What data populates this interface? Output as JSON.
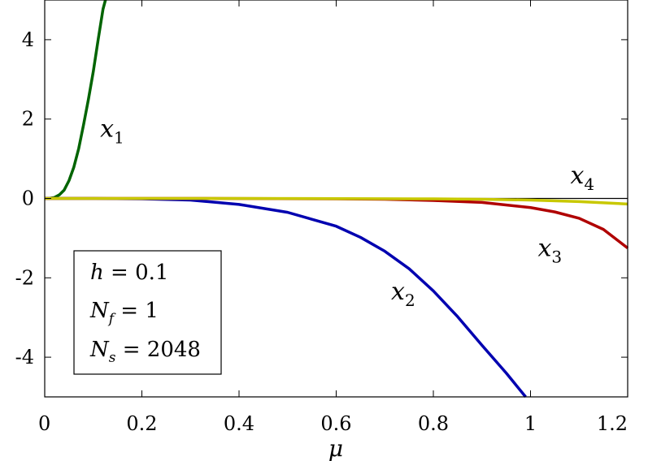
{
  "chart_data": {
    "type": "line",
    "xlabel": "μ",
    "xlim": [
      0,
      1.2
    ],
    "ylim": [
      -5,
      5
    ],
    "xticks": [
      "0",
      "0.2",
      "0.4",
      "0.6",
      "0.8",
      "1",
      "1.2"
    ],
    "xtick_values": [
      0,
      0.2,
      0.4,
      0.6,
      0.8,
      1.0,
      1.2
    ],
    "yticks": [
      "4",
      "2",
      "0",
      "-2",
      "-4"
    ],
    "ytick_values": [
      4,
      2,
      0,
      -2,
      -4
    ],
    "grid": false,
    "zero_line": true,
    "series": [
      {
        "name": "x",
        "sub": "1",
        "color": "#006400",
        "x": [
          0,
          0.01,
          0.02,
          0.03,
          0.04,
          0.05,
          0.06,
          0.07,
          0.08,
          0.09,
          0.1,
          0.11,
          0.12,
          0.125
        ],
        "y": [
          0,
          0.003,
          0.024,
          0.09,
          0.21,
          0.45,
          0.79,
          1.26,
          1.86,
          2.5,
          3.2,
          4.0,
          4.77,
          5.0
        ]
      },
      {
        "name": "x",
        "sub": "2",
        "color": "#0000b0",
        "x": [
          0,
          0.1,
          0.2,
          0.3,
          0.4,
          0.5,
          0.6,
          0.65,
          0.7,
          0.75,
          0.8,
          0.85,
          0.9,
          0.95,
          0.99
        ],
        "y": [
          0,
          0,
          -0.01,
          -0.04,
          -0.15,
          -0.35,
          -0.7,
          -0.98,
          -1.33,
          -1.77,
          -2.33,
          -2.98,
          -3.7,
          -4.4,
          -5.0
        ]
      },
      {
        "name": "x",
        "sub": "3",
        "color": "#b00000",
        "x": [
          0,
          0.3,
          0.6,
          0.7,
          0.8,
          0.9,
          1.0,
          1.05,
          1.1,
          1.15,
          1.2
        ],
        "y": [
          0,
          0,
          -0.01,
          -0.02,
          -0.05,
          -0.1,
          -0.23,
          -0.34,
          -0.5,
          -0.78,
          -1.25
        ]
      },
      {
        "name": "x",
        "sub": "4",
        "color": "#c8c800",
        "x": [
          0,
          0.4,
          0.8,
          0.9,
          1.0,
          1.1,
          1.2
        ],
        "y": [
          0,
          0,
          -0.01,
          -0.02,
          -0.04,
          -0.08,
          -0.14
        ]
      }
    ],
    "series_label_pos": [
      {
        "x": 0.114,
        "y": 1.55
      },
      {
        "x": 0.713,
        "y": -2.55
      },
      {
        "x": 1.015,
        "y": -1.45
      },
      {
        "x": 1.082,
        "y": 0.38
      }
    ],
    "legend": {
      "lines": [
        {
          "var": "h",
          "sub": "",
          "eq": "= 0.1"
        },
        {
          "var": "N",
          "sub": "f",
          "eq": "= 1"
        },
        {
          "var": "N",
          "sub": "s",
          "eq": "= 2048"
        }
      ],
      "placement": "bottom-left"
    }
  }
}
